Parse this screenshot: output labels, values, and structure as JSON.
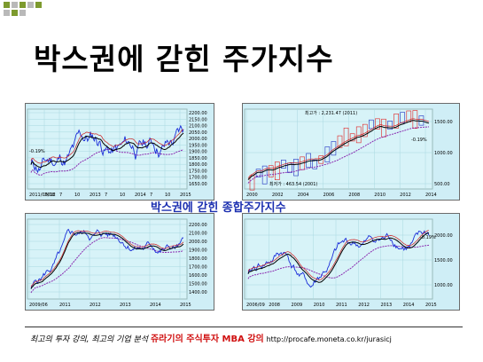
{
  "slide": {
    "title": "박스권에 갇힌 주가지수",
    "caption": "박스권에 갇힌 종합주가지수",
    "footer": {
      "lead": "최고의 투자 강의, 최고의 기업 분석",
      "brand": "쥬라기의 주식투자 MBA 강의",
      "url": "http://procafe.moneta.co.kr/jurasicj"
    },
    "colors": {
      "accent_green": "#7d9a2e",
      "accent_gray": "#b9b9b9",
      "brand_red": "#d01010",
      "caption_blue": "#1b2fb0"
    }
  },
  "chart_data": [
    {
      "type": "line",
      "x_ticks": [
        "2011/05/18",
        "2012",
        "7",
        "10",
        "2013",
        "7",
        "10",
        "2014",
        "7",
        "10",
        "2015"
      ],
      "y_ticks": [
        "2200.00",
        "2150.00",
        "2100.00",
        "2050.00",
        "2000.00",
        "1950.00",
        "1900.00",
        "1850.00",
        "1800.00",
        "1750.00",
        "1700.00",
        "1650.00"
      ],
      "annotations": [
        "-0.19%"
      ]
    },
    {
      "type": "line",
      "x_ticks": [
        "2000",
        "2002",
        "2004",
        "2006",
        "2008",
        "2010",
        "2012",
        "2014"
      ],
      "y_ticks": [
        "1500.00",
        "1000.00",
        "500.00"
      ],
      "annotations": [
        "최고가 : 2,231.47 (2011)",
        "최저가 : 463.54 (2001)",
        "-0.19%"
      ]
    },
    {
      "type": "line",
      "x_ticks": [
        "2009/06",
        "2011",
        "2012",
        "2013",
        "2014",
        "2015"
      ],
      "y_ticks": [
        "2200.00",
        "2100.00",
        "2000.00",
        "1900.00",
        "1800.00",
        "1700.00",
        "1600.00",
        "1500.00",
        "1400.00"
      ],
      "annotations": []
    },
    {
      "type": "line",
      "x_ticks": [
        "2006/09",
        "2008",
        "2009",
        "2010",
        "2011",
        "2012",
        "2013",
        "2014",
        "2015"
      ],
      "y_ticks": [
        "2000.00",
        "1500.00",
        "1000.00"
      ],
      "annotations": [
        "-0.19%"
      ]
    }
  ]
}
